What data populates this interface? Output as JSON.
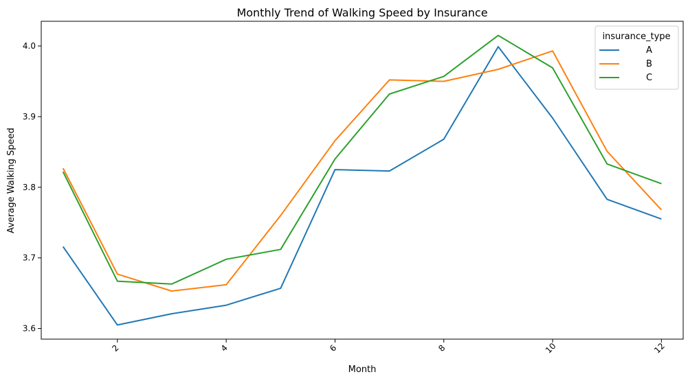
{
  "chart_data": {
    "type": "line",
    "title": "Monthly Trend of Walking Speed by Insurance",
    "xlabel": "Month",
    "ylabel": "Average Walking Speed",
    "xlim": [
      0.6,
      12.4
    ],
    "ylim": [
      3.585,
      4.035
    ],
    "x": [
      1,
      2,
      3,
      4,
      5,
      6,
      7,
      8,
      9,
      10,
      11,
      12
    ],
    "xticks": [
      2,
      4,
      6,
      8,
      10,
      12
    ],
    "yticks": [
      3.6,
      3.7,
      3.8,
      3.9,
      4.0
    ],
    "ytick_labels": [
      "3.6",
      "3.7",
      "3.8",
      "3.9",
      "4.0"
    ],
    "xtick_rotation": 45,
    "grid": false,
    "legend": {
      "title": "insurance_type",
      "placement": "top-right"
    },
    "series": [
      {
        "name": "A",
        "color": "#1f77b4",
        "values": [
          3.716,
          3.605,
          3.621,
          3.633,
          3.657,
          3.825,
          3.823,
          3.868,
          3.999,
          3.898,
          3.783,
          3.755
        ]
      },
      {
        "name": "B",
        "color": "#ff7f0e",
        "values": [
          3.827,
          3.677,
          3.653,
          3.662,
          3.76,
          3.866,
          3.952,
          3.95,
          3.967,
          3.993,
          3.851,
          3.768
        ]
      },
      {
        "name": "C",
        "color": "#2ca02c",
        "values": [
          3.822,
          3.667,
          3.663,
          3.698,
          3.712,
          3.84,
          3.932,
          3.957,
          4.015,
          3.969,
          3.833,
          3.805
        ]
      }
    ]
  }
}
